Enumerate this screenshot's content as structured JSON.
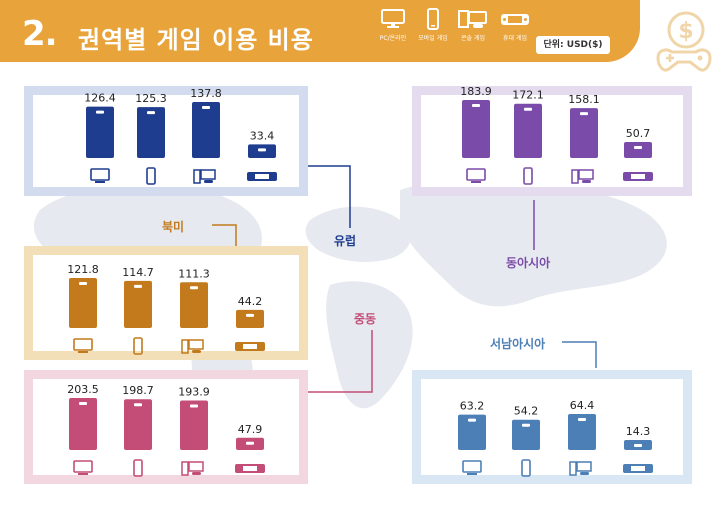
{
  "header": {
    "number": "2.",
    "title": "권역별 게임 이용 비용",
    "legend": [
      {
        "icon": "pc-monitor-icon",
        "label": "PC/온라인"
      },
      {
        "icon": "mobile-phone-icon",
        "label": "모바일 게임"
      },
      {
        "icon": "console-icon",
        "label": "콘솔 게임"
      },
      {
        "icon": "handheld-console-icon",
        "label": "휴대 게임"
      }
    ],
    "unit": "단위: USD($)",
    "logo_icon": "gamepad-money-icon"
  },
  "colors": {
    "header": "#e8a33a",
    "north_america": "#1e3d8f",
    "europe": "#7a4ba8",
    "east_asia": "#7a4ba8",
    "middle_east_panel": "#d9a64a",
    "middle_east": "#c27a1c",
    "se_asia_row": "#c44d77",
    "southeast_asia": "#4c7fb6"
  },
  "chart_data": [
    {
      "type": "bar",
      "panel": "north_america",
      "title": "",
      "categories": [
        "PC/온라인",
        "모바일 게임",
        "콘솔 게임",
        "휴대 게임"
      ],
      "values": [
        126.4,
        125.3,
        137.8,
        33.4
      ],
      "labels": [
        "126.4",
        "125.3",
        "137.8",
        "33.4"
      ],
      "color": "#1e3d8f"
    },
    {
      "type": "bar",
      "panel": "east_asia",
      "title": "",
      "categories": [
        "PC/온라인",
        "모바일 게임",
        "콘솔 게임",
        "휴대 게임"
      ],
      "values": [
        183.9,
        172.1,
        158.1,
        50.7
      ],
      "labels": [
        "183.9",
        "172.1",
        "158.1",
        "50.7"
      ],
      "color": "#7a4ba8"
    },
    {
      "type": "bar",
      "panel": "middle_east",
      "title": "",
      "categories": [
        "PC/온라인",
        "모바일 게임",
        "콘솔 게임",
        "휴대 게임"
      ],
      "values": [
        121.8,
        114.7,
        111.3,
        44.2
      ],
      "labels": [
        "121.8",
        "114.7",
        "111.3",
        "44.2"
      ],
      "color": "#c27a1c"
    },
    {
      "type": "bar",
      "panel": "europe_pink",
      "title": "",
      "categories": [
        "PC/온라인",
        "모바일 게임",
        "콘솔 게임",
        "휴대 게임"
      ],
      "values": [
        203.5,
        198.7,
        193.9,
        47.9
      ],
      "labels": [
        "203.5",
        "198.7",
        "193.9",
        "47.9"
      ],
      "color": "#c44d77"
    },
    {
      "type": "bar",
      "panel": "southeast_asia",
      "title": "",
      "categories": [
        "PC/온라인",
        "모바일 게임",
        "콘솔 게임",
        "휴대 게임"
      ],
      "values": [
        63.2,
        54.2,
        64.4,
        14.3
      ],
      "labels": [
        "63.2",
        "54.2",
        "64.4",
        "14.3"
      ],
      "color": "#4c7fb6"
    }
  ],
  "regions": {
    "north_america": "북미",
    "europe": "유럽",
    "east_asia": "동아시아",
    "middle_east": "중동",
    "southeast_asia": "서남아시아"
  }
}
